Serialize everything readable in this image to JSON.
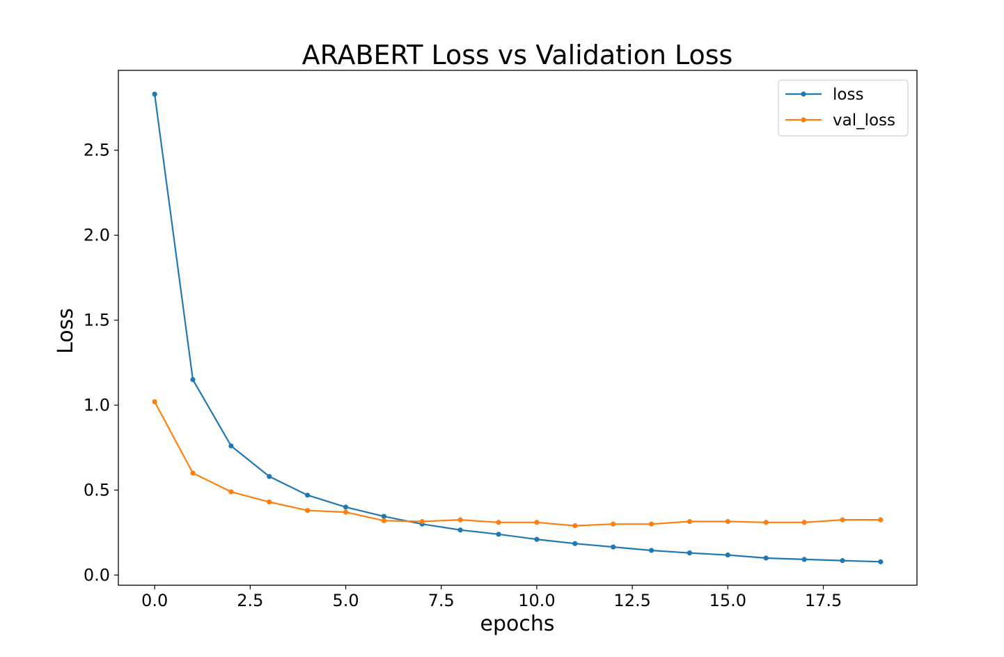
{
  "chart_data": {
    "type": "line",
    "title": "ARABERT Loss vs Validation Loss",
    "xlabel": "epochs",
    "ylabel": "Loss",
    "xlim": [
      -0.95,
      19.95
    ],
    "ylim": [
      -0.06,
      2.97
    ],
    "xticks": [
      0,
      2.5,
      5,
      7.5,
      10,
      12.5,
      15,
      17.5
    ],
    "xtick_labels": [
      "0.0",
      "2.5",
      "5.0",
      "7.5",
      "10.0",
      "12.5",
      "15.0",
      "17.5"
    ],
    "yticks": [
      0,
      0.5,
      1.0,
      1.5,
      2.0,
      2.5
    ],
    "ytick_labels": [
      "0.0",
      "0.5",
      "1.0",
      "1.5",
      "2.0",
      "2.5"
    ],
    "grid": false,
    "legend_position": "top-right",
    "x": [
      0,
      1,
      2,
      3,
      4,
      5,
      6,
      7,
      8,
      9,
      10,
      11,
      12,
      13,
      14,
      15,
      16,
      17,
      18,
      19
    ],
    "series": [
      {
        "name": "loss",
        "color": "#1f77b4",
        "values": [
          2.83,
          1.15,
          0.76,
          0.58,
          0.47,
          0.4,
          0.345,
          0.3,
          0.265,
          0.24,
          0.21,
          0.185,
          0.165,
          0.145,
          0.13,
          0.118,
          0.1,
          0.092,
          0.085,
          0.078
        ]
      },
      {
        "name": "val_loss",
        "color": "#ff7f0e",
        "values": [
          1.02,
          0.6,
          0.49,
          0.43,
          0.38,
          0.37,
          0.32,
          0.315,
          0.325,
          0.31,
          0.31,
          0.29,
          0.3,
          0.3,
          0.315,
          0.315,
          0.31,
          0.31,
          0.325,
          0.325
        ]
      }
    ]
  }
}
